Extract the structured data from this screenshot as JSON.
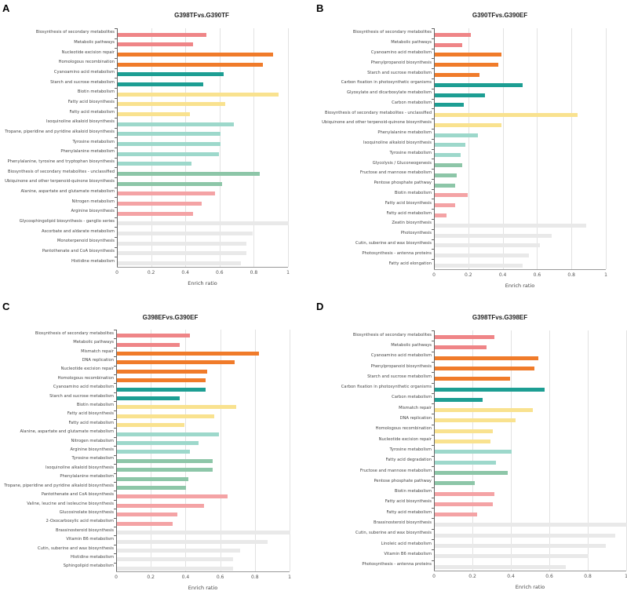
{
  "colors": {
    "pink": "#ef8587",
    "orange": "#f07b2a",
    "teal": "#1d9e93",
    "yellow": "#f9e28f",
    "light_teal": "#9dd8cb",
    "green": "#8dc6a8",
    "light_pink": "#f4a3a5",
    "gray": "#e9e9e9"
  },
  "chart_data": [
    {
      "panel": "A",
      "type": "bar",
      "orientation": "horizontal",
      "title": "G398TFvs.G390TF",
      "xlabel": "Enrich ratio",
      "xlim": [
        0,
        1
      ],
      "xticks": [
        "0",
        "0.2",
        "0.4",
        "0.6",
        "0.8",
        "1"
      ],
      "grid": true,
      "categories": [
        "Biosynthesis of secondary metabolites",
        "Metabolic pathways",
        "Nucleotide excision repair",
        "Homologous recombination",
        "Cyanoamino acid metabolism",
        "Starch and sucrose metabolism",
        "Biotin metabolism",
        "Fatty acid biosynthesis",
        "Fatty acid metabolism",
        "Isoquinoline alkaloid biosynthesis",
        "Tropane, piperidine and pyridine alkaloid biosynthesis",
        "Tyrosine metabolism",
        "Phenylalanine metabolism",
        "Phenylalanine, tyrosine and tryptophan biosynthesis",
        "Biosynthesis of secondary metabolites - unclassified",
        "Ubiquinone and other terpenoid-quinone biosynthesis",
        "Alanine, aspartate and glutamate metabolism",
        "Nitrogen metabolism",
        "Arginine biosynthesis",
        "Glycosphingolipid biosynthesis - ganglio series",
        "Ascorbate and aldarate metabolism",
        "Monoterpenoid biosynthesis",
        "Pantothenate and CoA biosynthesis",
        "Histidine metabolism"
      ],
      "values": [
        0.52,
        0.44,
        0.91,
        0.85,
        0.62,
        0.5,
        0.94,
        0.63,
        0.42,
        0.68,
        0.6,
        0.6,
        0.59,
        0.43,
        0.83,
        0.61,
        0.57,
        0.49,
        0.44,
        1.0,
        0.79,
        0.75,
        0.75,
        0.72
      ],
      "bar_colors": [
        "pink",
        "pink",
        "orange",
        "orange",
        "teal",
        "teal",
        "yellow",
        "yellow",
        "yellow",
        "light_teal",
        "light_teal",
        "light_teal",
        "light_teal",
        "light_teal",
        "green",
        "green",
        "light_pink",
        "light_pink",
        "light_pink",
        "gray",
        "gray",
        "gray",
        "gray",
        "gray"
      ]
    },
    {
      "panel": "B",
      "type": "bar",
      "orientation": "horizontal",
      "title": "G390TFvs.G390EF",
      "xlabel": "Enrich ratio",
      "xlim": [
        0,
        1
      ],
      "xticks": [
        "0",
        "0.2",
        "0.4",
        "0.6",
        "0.8",
        "1"
      ],
      "grid": true,
      "categories": [
        "Biosynthesis of secondary metabolites",
        "Metabolic pathways",
        "Cyanoamino acid metabolism",
        "Phenylpropanoid biosynthesis",
        "Starch and sucrose metabolism",
        "Carbon fixation in photosynthetic organisms",
        "Glyoxylate and dicarboxylate metabolism",
        "Carbon metabolism",
        "Biosynthesis of secondary metabolites - unclassified",
        "Ubiquinone and other terpenoid-quinone biosynthesis",
        "Phenylalanine metabolism",
        "Isoquinoline alkaloid biosynthesis",
        "Tyrosine metabolism",
        "Glycolysis / Gluconeogenesis",
        "Fructose and mannose metabolism",
        "Pentose phosphate pathway",
        "Biotin metabolism",
        "Fatty acid biosynthesis",
        "Fatty acid metabolism",
        "Zeatin biosynthesis",
        "Photosynthesis",
        "Cutin, suberine and wax biosynthesis",
        "Photosynthesis - antenna proteins",
        "Fatty acid elongation"
      ],
      "values": [
        0.21,
        0.16,
        0.39,
        0.37,
        0.26,
        0.51,
        0.29,
        0.17,
        0.83,
        0.39,
        0.25,
        0.18,
        0.15,
        0.16,
        0.13,
        0.12,
        0.19,
        0.12,
        0.07,
        0.88,
        0.68,
        0.61,
        0.55,
        0.51
      ],
      "bar_colors": [
        "pink",
        "pink",
        "orange",
        "orange",
        "orange",
        "teal",
        "teal",
        "teal",
        "yellow",
        "yellow",
        "light_teal",
        "light_teal",
        "light_teal",
        "green",
        "green",
        "green",
        "light_pink",
        "light_pink",
        "light_pink",
        "gray",
        "gray",
        "gray",
        "gray",
        "gray"
      ]
    },
    {
      "panel": "C",
      "type": "bar",
      "orientation": "horizontal",
      "title": "G398EFvs.G390EF",
      "xlabel": "Enrich ratio",
      "xlim": [
        0,
        1
      ],
      "xticks": [
        "0",
        "0.2",
        "0.4",
        "0.6",
        "0.8",
        "1"
      ],
      "grid": true,
      "categories": [
        "Biosynthesis of secondary metabolites",
        "Metabolic pathways",
        "Mismatch repair",
        "DNA replication",
        "Nucleotide excision repair",
        "Homologous recombination",
        "Cyanoamino acid metabolism",
        "Starch and sucrose metabolism",
        "Biotin metabolism",
        "Fatty acid biosynthesis",
        "Fatty acid metabolism",
        "Alanine, aspartate and glutamate metabolism",
        "Nitrogen metabolism",
        "Arginine biosynthesis",
        "Tyrosine metabolism",
        "Isoquinoline alkaloid biosynthesis",
        "Phenylalanine metabolism",
        "Tropane, piperidine and pyridine alkaloid biosynthesis",
        "Pantothenate and CoA biosynthesis",
        "Valine, leucine and isoleucine biosynthesis",
        "Glucosinolate biosynthesis",
        "2-Oxocarboxylic acid metabolism",
        "Brassinosteroid biosynthesis",
        "Vitamin B6 metabolism",
        "Cutin, suberine and wax biosynthesis",
        "Histidine metabolism",
        "Sphingolipid metabolism"
      ],
      "values": [
        0.42,
        0.36,
        0.82,
        0.68,
        0.52,
        0.51,
        0.51,
        0.36,
        0.69,
        0.56,
        0.39,
        0.59,
        0.47,
        0.42,
        0.55,
        0.55,
        0.41,
        0.4,
        0.64,
        0.5,
        0.35,
        0.32,
        1.0,
        0.87,
        0.71,
        0.67,
        0.67
      ],
      "bar_colors": [
        "pink",
        "pink",
        "orange",
        "orange",
        "orange",
        "orange",
        "teal",
        "teal",
        "yellow",
        "yellow",
        "yellow",
        "light_teal",
        "light_teal",
        "light_teal",
        "green",
        "green",
        "green",
        "green",
        "light_pink",
        "light_pink",
        "light_pink",
        "light_pink",
        "gray",
        "gray",
        "gray",
        "gray",
        "gray"
      ]
    },
    {
      "panel": "D",
      "type": "bar",
      "orientation": "horizontal",
      "title": "G398TFvs.G398EF",
      "xlabel": "Enrich ratio",
      "xlim": [
        0,
        1
      ],
      "xticks": [
        "0",
        "0.2",
        "0.4",
        "0.6",
        "0.8",
        "1"
      ],
      "grid": true,
      "categories": [
        "Biosynthesis of secondary metabolites",
        "Metabolic pathways",
        "Cyanoamino acid metabolism",
        "Phenylpropanoid biosynthesis",
        "Starch and sucrose metabolism",
        "Carbon fixation in photosynthetic organisms",
        "Carbon metabolism",
        "Mismatch repair",
        "DNA replication",
        "Homologous recombination",
        "Nucleotide excision repair",
        "Tyrosine metabolism",
        "Fatty acid degradation",
        "Fructose and mannose metabolism",
        "Pentose phosphate pathway",
        "Biotin metabolism",
        "Fatty acid biosynthesis",
        "Fatty acid metabolism",
        "Brassinosteroid biosynthesis",
        "Cutin, suberine and wax biosynthesis",
        "Linoleic acid metabolism",
        "Vitamin B6 metabolism",
        "Photosynthesis - antenna proteins"
      ],
      "values": [
        0.31,
        0.27,
        0.54,
        0.52,
        0.39,
        0.57,
        0.25,
        0.51,
        0.42,
        0.3,
        0.29,
        0.4,
        0.32,
        0.38,
        0.21,
        0.31,
        0.3,
        0.22,
        1.0,
        0.94,
        0.89,
        0.8,
        0.68
      ],
      "bar_colors": [
        "pink",
        "pink",
        "orange",
        "orange",
        "orange",
        "teal",
        "teal",
        "yellow",
        "yellow",
        "yellow",
        "yellow",
        "light_teal",
        "light_teal",
        "green",
        "green",
        "light_pink",
        "light_pink",
        "light_pink",
        "gray",
        "gray",
        "gray",
        "gray",
        "gray"
      ]
    }
  ]
}
